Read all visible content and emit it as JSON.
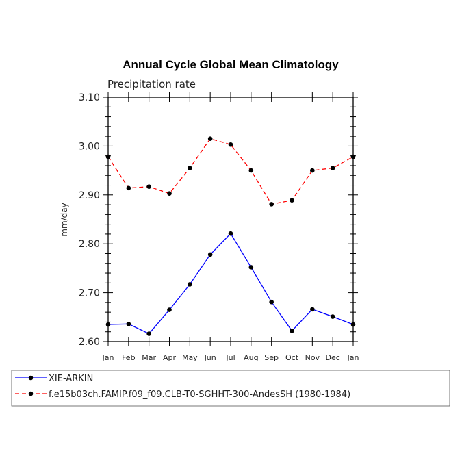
{
  "chart_data": {
    "type": "line",
    "title": "Annual Cycle Global Mean Climatology",
    "subtitle": "Precipitation rate",
    "ylabel": "mm/day",
    "xlabel": "",
    "categories": [
      "Jan",
      "Feb",
      "Mar",
      "Apr",
      "May",
      "Jun",
      "Jul",
      "Aug",
      "Sep",
      "Oct",
      "Nov",
      "Dec",
      "Jan"
    ],
    "ylim": [
      2.6,
      3.1
    ],
    "yticks": [
      "2.60",
      "2.70",
      "2.80",
      "2.90",
      "3.00",
      "3.10"
    ],
    "yticks_values": [
      2.6,
      2.7,
      2.8,
      2.9,
      3.0,
      3.1
    ],
    "grid": false,
    "legend_position": "bottom",
    "series": [
      {
        "name": "XIE-ARKIN",
        "color": "#0000ff",
        "dash": "solid",
        "values": [
          2.635,
          2.636,
          2.616,
          2.665,
          2.717,
          2.778,
          2.821,
          2.752,
          2.681,
          2.622,
          2.666,
          2.651,
          2.635
        ]
      },
      {
        "name": "f.e15b03ch.FAMIP.f09_f09.CLB-T0-SGHHT-300-AndesSH (1980-1984)",
        "color": "#ff0000",
        "dash": "dashed",
        "values": [
          2.978,
          2.914,
          2.917,
          2.903,
          2.955,
          3.015,
          3.003,
          2.95,
          2.881,
          2.889,
          2.95,
          2.955,
          2.978
        ]
      }
    ]
  }
}
